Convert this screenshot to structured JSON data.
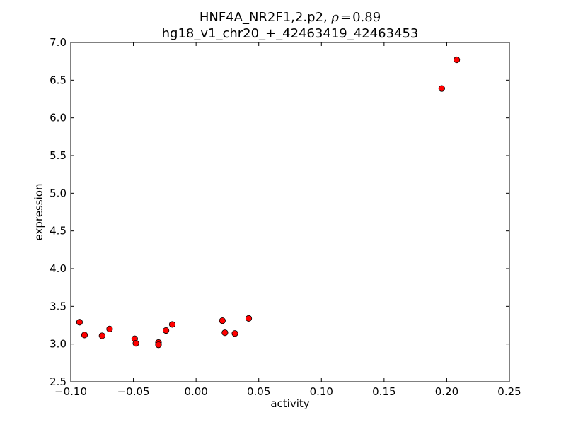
{
  "chart_data": {
    "type": "scatter",
    "title_line1_prefix": "HNF4A_NR2F1,2.p2, ",
    "title_rho_symbol": "ρ",
    "title_rho_equals": "=",
    "title_rho_value": "0.89",
    "title_line2": "hg18_v1_chr20_+_42463419_42463453",
    "xlabel": "activity",
    "ylabel": "expression",
    "xlim": [
      -0.1,
      0.25
    ],
    "ylim": [
      2.5,
      7.0
    ],
    "xticks": [
      -0.1,
      -0.05,
      0.0,
      0.05,
      0.1,
      0.15,
      0.2,
      0.25
    ],
    "xtick_labels": [
      "−0.10",
      "−0.05",
      "0.00",
      "0.05",
      "0.10",
      "0.15",
      "0.20",
      "0.25"
    ],
    "yticks": [
      2.5,
      3.0,
      3.5,
      4.0,
      4.5,
      5.0,
      5.5,
      6.0,
      6.5,
      7.0
    ],
    "ytick_labels": [
      "2.5",
      "3.0",
      "3.5",
      "4.0",
      "4.5",
      "5.0",
      "5.5",
      "6.0",
      "6.5",
      "7.0"
    ],
    "grid": false,
    "marker_color": "#ff0000",
    "marker_edge_color": "#000000",
    "points": [
      {
        "x": -0.093,
        "y": 3.29
      },
      {
        "x": -0.089,
        "y": 3.12
      },
      {
        "x": -0.075,
        "y": 3.11
      },
      {
        "x": -0.069,
        "y": 3.2
      },
      {
        "x": -0.049,
        "y": 3.07
      },
      {
        "x": -0.048,
        "y": 3.01
      },
      {
        "x": -0.03,
        "y": 3.02
      },
      {
        "x": -0.03,
        "y": 2.99
      },
      {
        "x": -0.024,
        "y": 3.18
      },
      {
        "x": -0.019,
        "y": 3.26
      },
      {
        "x": 0.021,
        "y": 3.31
      },
      {
        "x": 0.023,
        "y": 3.15
      },
      {
        "x": 0.031,
        "y": 3.14
      },
      {
        "x": 0.042,
        "y": 3.34
      },
      {
        "x": 0.196,
        "y": 6.39
      },
      {
        "x": 0.208,
        "y": 6.77
      }
    ]
  }
}
